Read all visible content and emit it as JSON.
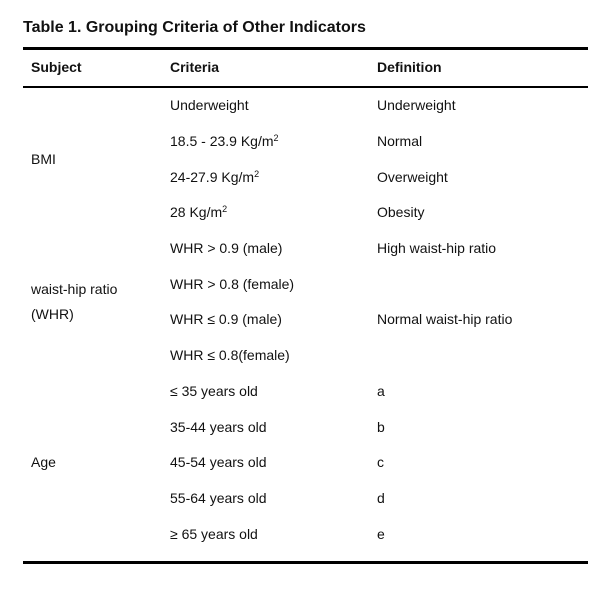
{
  "title": "Table 1. Grouping Criteria of Other Indicators",
  "headers": {
    "subject": "Subject",
    "criteria": "Criteria",
    "definition": "Definition"
  },
  "subjects": {
    "bmi": "BMI",
    "whr_line1": "waist-hip ratio",
    "whr_line2": "(WHR)",
    "age": "Age"
  },
  "rows": [
    {
      "criteria": "Underweight",
      "definition": "Underweight"
    },
    {
      "criteria": "18.5 - 23.9 Kg/m",
      "sup": "2",
      "definition": "Normal"
    },
    {
      "criteria": "24-27.9 Kg/m",
      "sup": "2",
      "definition": "Overweight"
    },
    {
      "criteria": "28 Kg/m",
      "sup": "2",
      "definition": "Obesity"
    },
    {
      "criteria": "WHR > 0.9 (male)",
      "definition": "High waist-hip ratio"
    },
    {
      "criteria": "WHR > 0.8 (female)",
      "definition": ""
    },
    {
      "criteria": "WHR ≤ 0.9 (male)",
      "definition": "Normal waist-hip ratio"
    },
    {
      "criteria": "WHR ≤ 0.8(female)",
      "definition": ""
    },
    {
      "criteria": "≤ 35 years old",
      "definition": "a"
    },
    {
      "criteria": "35-44 years old",
      "definition": "b"
    },
    {
      "criteria": "45-54 years old",
      "definition": "c"
    },
    {
      "criteria": "55-64 years old",
      "definition": "d"
    },
    {
      "criteria": "≥ 65 years old",
      "definition": "e"
    }
  ]
}
